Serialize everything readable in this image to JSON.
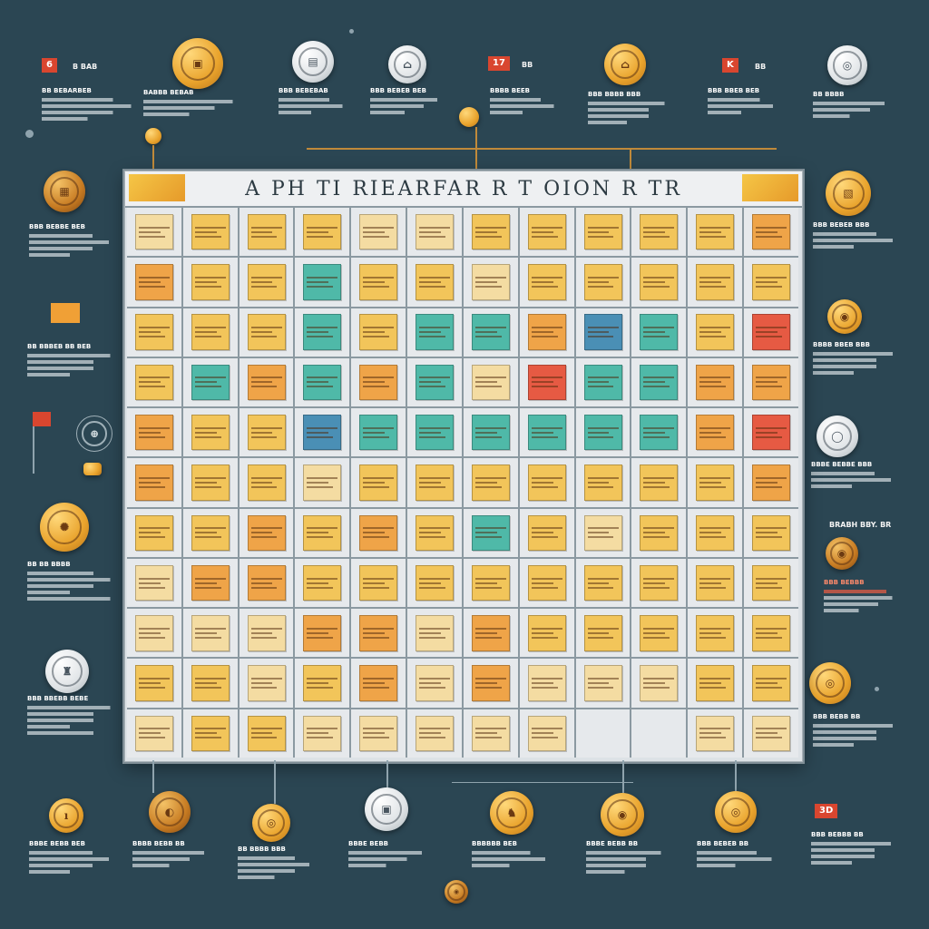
{
  "board": {
    "title": "A  PH   TI  RIEARFAR    R    T    OION    R     TR",
    "corner_colors": [
      "#f5c646",
      "#e69a2a"
    ],
    "rows": 11,
    "cols": 12,
    "cells": [
      "pale",
      "gold",
      "gold",
      "gold",
      "pale",
      "pale",
      "gold",
      "gold",
      "gold",
      "gold",
      "gold",
      "orange",
      "orange",
      "gold",
      "gold",
      "teal",
      "gold",
      "gold",
      "pale",
      "gold",
      "gold",
      "gold",
      "gold",
      "gold",
      "gold",
      "gold",
      "gold",
      "teal",
      "gold",
      "teal",
      "teal",
      "orange",
      "blue",
      "teal",
      "gold",
      "red",
      "gold",
      "teal",
      "orange",
      "teal",
      "orange",
      "teal",
      "pale",
      "red",
      "teal",
      "teal",
      "orange",
      "orange",
      "orange",
      "gold",
      "gold",
      "blue",
      "teal",
      "teal",
      "teal",
      "teal",
      "teal",
      "teal",
      "orange",
      "red",
      "orange",
      "gold",
      "gold",
      "pale",
      "gold",
      "gold",
      "gold",
      "gold",
      "gold",
      "gold",
      "gold",
      "orange",
      "gold",
      "gold",
      "orange",
      "gold",
      "orange",
      "gold",
      "teal",
      "gold",
      "pale",
      "gold",
      "gold",
      "gold",
      "pale",
      "orange",
      "orange",
      "gold",
      "gold",
      "gold",
      "gold",
      "gold",
      "gold",
      "gold",
      "gold",
      "gold",
      "pale",
      "pale",
      "pale",
      "orange",
      "orange",
      "pale",
      "orange",
      "gold",
      "gold",
      "gold",
      "gold",
      "gold",
      "gold",
      "gold",
      "pale",
      "gold",
      "orange",
      "pale",
      "orange",
      "pale",
      "pale",
      "pale",
      "gold",
      "gold",
      "pale",
      "gold",
      "gold",
      "pale",
      "pale",
      "pale",
      "pale",
      "pale",
      "empty",
      "empty",
      "pale",
      "pale"
    ]
  },
  "tags": {
    "top_left_tag": "6",
    "top_left_text": "B  BAB",
    "top_mid_tag": "17",
    "top_mid_text": "BB",
    "top_right_tag": "K",
    "top_right_text": "BB",
    "bottom_right_tag": "3D",
    "right_mid_text": "BRABH BBY. BR"
  },
  "notes": {
    "n1": "BB  BEBARBEB",
    "n2": "BABBB BEBAB",
    "n3": "BBB  BEBEBAB",
    "n4": "BBB BEBEB BEB",
    "n5": "BBBB BEEB",
    "n6": "BBB BBBB BBB",
    "n7": "BBB BBEB BEB",
    "n8": "BB BBBB",
    "l1": "BBB BEBBE BEB",
    "l2": "BB BBBEB BB BEB",
    "l3": "BB BB BBBB",
    "l4": "BBB BBEBB BEBE",
    "r1": "BBB BEBEB BBB",
    "r2": "BBBB BBEB BBB",
    "r3": "BBBE BEBBE BBB",
    "r4": "BBB BEBBB",
    "r5": "BBB BEBB BB",
    "b1": "BBBE BEBB BEB",
    "b2": "BBBB BEBB BB",
    "b3": "BB BBBB BBB",
    "b4": "BBBE BEBB",
    "b5": "BBBBBB BEB",
    "b6": "BBBE BEBB BB",
    "b7": "BBB BEBEB BB",
    "b8": "BBB BEBBB BB"
  }
}
